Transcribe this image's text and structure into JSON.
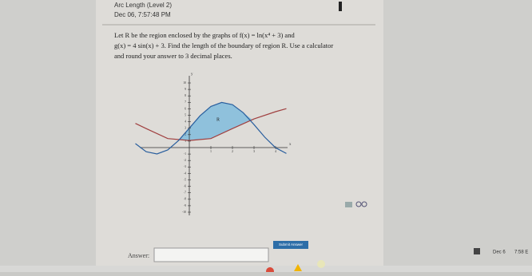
{
  "header": {
    "title": "Arc Length (Level 2)",
    "date": "Dec 06, 7:57:48 PM"
  },
  "question": {
    "line1": "Let R be the region enclosed by the graphs of f(x) = ln(x⁴ + 3) and",
    "line2": "g(x) = 4 sin(x) + 3. Find the length of the boundary of region R. Use a calculator",
    "line3": "and round your answer to 3 decimal places."
  },
  "graph": {
    "x_label": "x",
    "y_label": "y",
    "region_label": "R",
    "x_ticks": [
      "1",
      "2",
      "3",
      "4"
    ],
    "y_ticks": [
      "10",
      "9",
      "8",
      "7",
      "6",
      "5",
      "4",
      "3",
      "2",
      "1",
      "-1",
      "-2",
      "-3",
      "-4",
      "-5",
      "-6",
      "-7",
      "-8",
      "-9",
      "-10"
    ]
  },
  "answer": {
    "label": "Answer:",
    "button": "Submit Answer"
  },
  "taskbar": {
    "date": "Dec 6",
    "time": "7:58 E"
  }
}
